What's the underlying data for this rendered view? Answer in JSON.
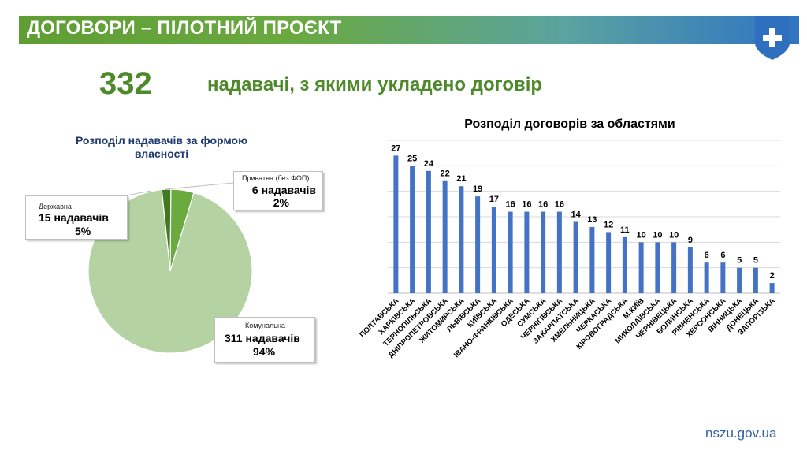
{
  "header": {
    "title": "ДОГОВОРИ – ПІЛОТНИЙ ПРОЄКТ"
  },
  "summary": {
    "number": "332",
    "text": "надавачі, з якими укладено договір"
  },
  "pie": {
    "title": "Розподіл надавачів за формою власності",
    "callouts": {
      "private": {
        "category": "Приватна (без ФОП)",
        "count": "6 надавачів",
        "percent": "2%"
      },
      "state": {
        "category": "Державна",
        "count": "15  надавачів",
        "percent": "5%"
      },
      "communal": {
        "category": "Комунальна",
        "count": "311 надавачів",
        "percent": "94%"
      }
    }
  },
  "footer": {
    "site": "nszu.gov.ua"
  },
  "colors": {
    "bar": "#4472c4",
    "pie_communal": "#b4d2a2",
    "pie_state": "#6aaa3f",
    "pie_private": "#3f7a1f"
  },
  "chart_data": [
    {
      "type": "pie",
      "title": "Розподіл надавачів за формою власності",
      "labels": [
        "Комунальна",
        "Державна",
        "Приватна (без ФОП)"
      ],
      "values": [
        311,
        15,
        6
      ],
      "percents": [
        94,
        5,
        2
      ]
    },
    {
      "type": "bar",
      "title": "Розподіл договорів за областями",
      "categories": [
        "ПОЛТАВСЬКА",
        "ХАРКІВСЬКА",
        "ТЕРНОПІЛЬСЬКА",
        "ДНІПРОПЕТРОВСЬКА",
        "ЖИТОМИРСЬКА",
        "ЛЬВІВСЬКА",
        "КИЇВСЬКА",
        "ІВАНО-ФРАНКІВСЬКА",
        "ОДЕСЬКА",
        "СУМСЬКА",
        "ЧЕРНІГІВСЬКА",
        "ЗАКАРПАТСЬКА",
        "ХМЕЛЬНИЦЬКА",
        "ЧЕРКАСЬКА",
        "КІРОВОГРАДСЬКА",
        "М.КИЇВ",
        "МИКОЛАЇВСЬКА",
        "ЧЕРНІВЕЦЬКА",
        "ВОЛИНСЬКА",
        "РІВНЕНСЬКА",
        "ХЕРСОНСЬКА",
        "ВІННИЦЬКА",
        "ДОНЕЦЬКА",
        "ЗАПОРІЗЬКА"
      ],
      "values": [
        27,
        25,
        24,
        22,
        21,
        19,
        17,
        16,
        16,
        16,
        16,
        14,
        13,
        12,
        11,
        10,
        10,
        10,
        9,
        6,
        6,
        5,
        5,
        2
      ],
      "ylim": [
        0,
        30
      ],
      "grid": true
    }
  ]
}
